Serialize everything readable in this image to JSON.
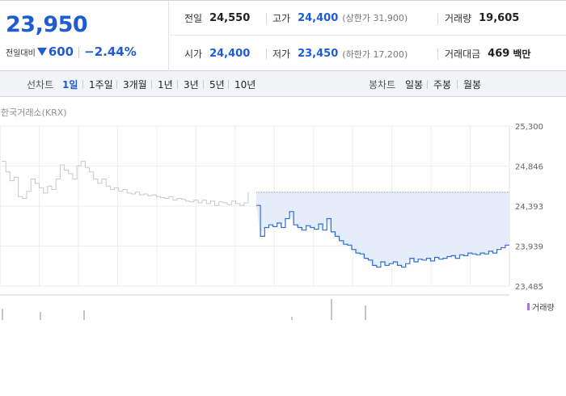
{
  "summary": {
    "current_price": "23,950",
    "change_label": "전일대비",
    "change_value": "600",
    "change_rate": "−2.44%",
    "prev_close": {
      "label": "전일",
      "value": "24,550"
    },
    "high": {
      "label": "고가",
      "value": "24,400",
      "sub_label": "상한가",
      "sub_value": "31,900"
    },
    "volume": {
      "label": "거래량",
      "value": "19,605"
    },
    "open": {
      "label": "시가",
      "value": "24,400"
    },
    "low": {
      "label": "저가",
      "value": "23,450",
      "sub_label": "하한가",
      "sub_value": "17,200"
    },
    "trade_amount": {
      "label": "거래대금",
      "value": "469",
      "unit": "백만"
    }
  },
  "tabs": {
    "line_label": "선차트",
    "line_tabs": [
      "1일",
      "1주일",
      "3개월",
      "1년",
      "3년",
      "5년",
      "10년"
    ],
    "active_tab": "1일",
    "candle_label": "봉차트",
    "candle_tabs": [
      "일봉",
      "주봉",
      "월봉"
    ]
  },
  "chart": {
    "market": "한국거래소(KRX)",
    "volume_legend": "거래량",
    "colors": {
      "today": "#2e6fd8",
      "prev": "#c5c8cd",
      "fill": "#e4edf9",
      "volume": "#9b7ad8"
    }
  },
  "chart_data": {
    "type": "line",
    "y_ticks": [
      "25,300",
      "24,846",
      "24,393",
      "23,939",
      "23,485"
    ],
    "ylim": [
      23485,
      25300
    ],
    "prev_close": 24550,
    "series": [
      {
        "values": [
          24900,
          24780,
          24680,
          24720,
          24500,
          24480,
          24560,
          24700,
          24650,
          24600,
          24540,
          24620,
          24580,
          24700,
          24860,
          24800,
          24760,
          24700,
          24850,
          24900,
          24830,
          24780,
          24700,
          24650,
          24700,
          24620,
          24580,
          24600,
          24560,
          24580,
          24540,
          24530,
          24550,
          24520,
          24530,
          24510,
          24520,
          24500,
          24490,
          24480,
          24500,
          24460,
          24480,
          24470,
          24450,
          24440,
          24460,
          24430,
          24460,
          24420,
          24450,
          24400,
          24440,
          24430,
          24410,
          24450,
          24420,
          24400,
          24430,
          24550
        ]
      },
      {
        "values": [
          24400,
          24050,
          24150,
          24180,
          24160,
          24200,
          24150,
          24250,
          24330,
          24180,
          24150,
          24120,
          24170,
          24150,
          24130,
          24190,
          24120,
          24250,
          24100,
          24050,
          24000,
          23960,
          23950,
          23900,
          23860,
          23850,
          23800,
          23780,
          23720,
          23700,
          23760,
          23720,
          23740,
          23760,
          23720,
          23700,
          23740,
          23800,
          23760,
          23790,
          23780,
          23800,
          23770,
          23810,
          23790,
          23800,
          23820,
          23830,
          23800,
          23840,
          23830,
          23860,
          23850,
          23840,
          23860,
          23850,
          23880,
          23860,
          23900,
          23920,
          23950,
          23950
        ]
      }
    ]
  }
}
